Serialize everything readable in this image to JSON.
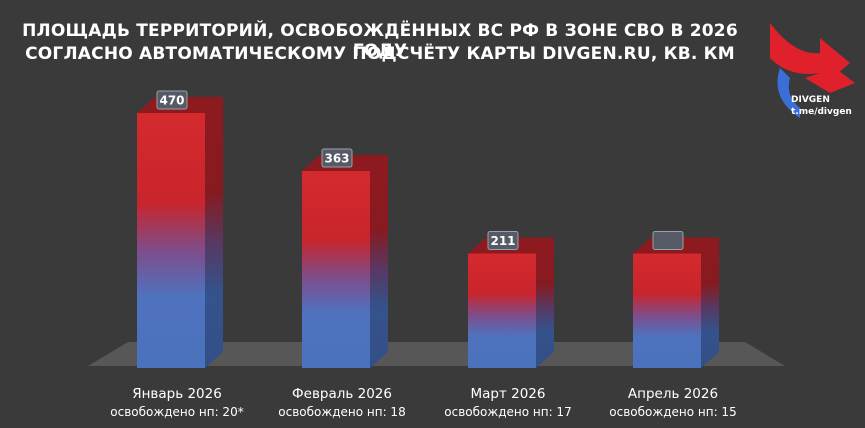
{
  "header": {
    "title_line1": "ПЛОЩАДЬ ТЕРРИТОРИЙ, ОСВОБОЖДЁННЫХ ВС РФ В ЗОНЕ СВО В 2026 ГОДУ",
    "title_line2": "СОГЛАСНО АВТОМАТИЧЕСКОМУ ПОДСЧЁТУ КАРТЫ DIVGEN.RU, КВ. КМ"
  },
  "logo": {
    "name": "DIVGEN",
    "link": "t.me/divgen",
    "icon": "divgen-arrows-logo",
    "colors": {
      "red": "#e0202a",
      "blue": "#3a6fd8"
    }
  },
  "chart_data": {
    "type": "bar",
    "categories": [
      "Январь 2026",
      "Февраль 2026",
      "Март 2026",
      "Апрель 2026"
    ],
    "subcaptions": [
      "освобождено нп: 20*",
      "освобождено нп: 18",
      "освобождено нп: 17",
      "освобождено нп: 15"
    ],
    "values": [
      470,
      363,
      211,
      211
    ],
    "value_labels": [
      "470",
      "363",
      "211",
      ""
    ],
    "title": "ПЛОЩАДЬ ТЕРРИТОРИЙ, ОСВОБОЖДЁННЫХ ВС РФ В ЗОНЕ СВО В 2026 ГОДУ",
    "xlabel": "",
    "ylabel": "",
    "ylim": [
      0,
      470
    ],
    "grid": false,
    "legend": "none",
    "colors": {
      "top": "#d42a2e",
      "bottom": "#4a72bd",
      "background": "#3a3a3a",
      "floor": "#555555"
    }
  }
}
